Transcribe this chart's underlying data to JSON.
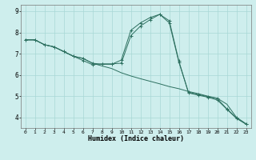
{
  "xlabel": "Humidex (Indice chaleur)",
  "background_color": "#ceeeed",
  "grid_color": "#a8d8d5",
  "line_color": "#2d7060",
  "xlim": [
    -0.5,
    23.5
  ],
  "ylim": [
    3.5,
    9.3
  ],
  "yticks": [
    4,
    5,
    6,
    7,
    8,
    9
  ],
  "xticks": [
    0,
    1,
    2,
    3,
    4,
    5,
    6,
    7,
    8,
    9,
    10,
    11,
    12,
    13,
    14,
    15,
    16,
    17,
    18,
    19,
    20,
    21,
    22,
    23
  ],
  "line1_y": [
    7.65,
    7.65,
    7.42,
    7.32,
    7.1,
    6.88,
    6.78,
    6.55,
    6.42,
    6.3,
    6.1,
    5.95,
    5.82,
    5.7,
    5.58,
    5.45,
    5.35,
    5.22,
    5.12,
    5.0,
    4.9,
    4.62,
    4.0,
    3.7
  ],
  "line2_y": [
    7.65,
    7.65,
    7.42,
    7.32,
    7.1,
    6.88,
    6.78,
    6.55,
    6.5,
    6.5,
    6.7,
    8.1,
    8.45,
    8.7,
    8.85,
    8.55,
    6.65,
    5.15,
    5.05,
    4.95,
    4.82,
    4.38,
    3.95,
    3.68
  ],
  "line3_y": [
    7.65,
    7.65,
    7.42,
    7.32,
    7.1,
    6.88,
    6.68,
    6.48,
    6.52,
    6.52,
    6.55,
    7.85,
    8.3,
    8.6,
    8.85,
    8.45,
    6.6,
    5.18,
    5.08,
    4.98,
    4.88,
    4.4,
    3.98,
    3.68
  ]
}
